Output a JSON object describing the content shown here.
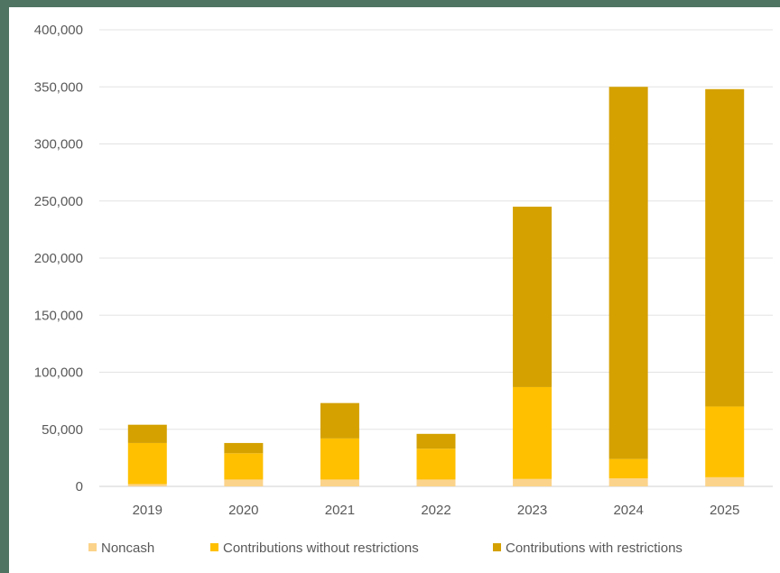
{
  "chart_data": {
    "type": "bar",
    "stacked": true,
    "title": "",
    "xlabel": "",
    "ylabel": "",
    "categories": [
      "2019",
      "2020",
      "2021",
      "2022",
      "2023",
      "2024",
      "2025"
    ],
    "series": [
      {
        "name": "Noncash",
        "color": "#fbd38a",
        "values": [
          2000,
          6000,
          6000,
          6000,
          6500,
          7000,
          8000
        ]
      },
      {
        "name": "Contributions without restrictions",
        "color": "#ffc000",
        "values": [
          36000,
          23000,
          36000,
          27000,
          80500,
          17000,
          62000
        ]
      },
      {
        "name": "Contributions with restrictions",
        "color": "#d4a100",
        "values": [
          16000,
          9000,
          31000,
          13000,
          158000,
          326000,
          278000
        ]
      }
    ],
    "ylim": [
      0,
      400000
    ],
    "yticks": [
      "400,000",
      "350,000",
      "300,000",
      "250,000",
      "200,000",
      "150,000",
      "100,000",
      "50,000",
      "0"
    ],
    "grid": true,
    "legend_position": "bottom"
  }
}
